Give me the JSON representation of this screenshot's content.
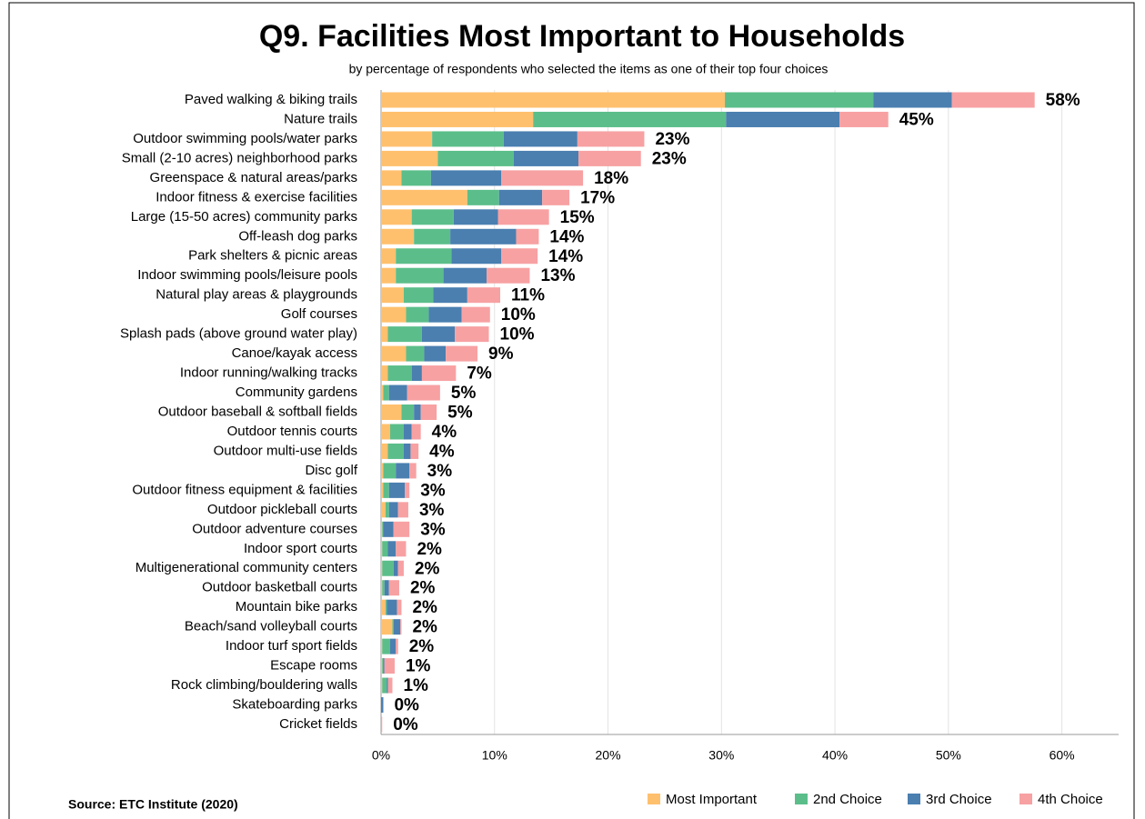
{
  "chart_data": {
    "type": "stacked-bar-horizontal",
    "title": "Q9. Facilities Most Important to Households",
    "subtitle": "by percentage of respondents who selected the items as one of their top four choices",
    "source": "Source:  ETC Institute (2020)",
    "categories": [
      "Paved walking & biking trails",
      "Nature trails",
      "Outdoor swimming pools/water parks",
      "Small (2-10 acres) neighborhood parks",
      "Greenspace & natural areas/parks",
      "Indoor fitness & exercise facilities",
      "Large (15-50 acres) community parks",
      "Off-leash dog parks",
      "Park shelters & picnic areas",
      "Indoor swimming pools/leisure pools",
      "Natural play areas & playgrounds",
      "Golf courses",
      "Splash pads (above ground water play)",
      "Canoe/kayak access",
      "Indoor running/walking tracks",
      "Community gardens",
      "Outdoor baseball & softball fields",
      "Outdoor tennis courts",
      "Outdoor multi-use fields",
      "Disc golf",
      "Outdoor fitness equipment & facilities",
      "Outdoor pickleball courts",
      "Outdoor adventure courses",
      "Indoor sport courts",
      "Multigenerational community centers",
      "Outdoor basketball courts",
      "Mountain bike parks",
      "Beach/sand volleyball courts",
      "Indoor turf sport fields",
      "Escape rooms",
      "Rock climbing/bouldering walls",
      "Skateboarding parks",
      "Cricket fields"
    ],
    "series": [
      {
        "name": "Most Important",
        "color": "#FFC06E",
        "values": [
          30.3,
          13.4,
          4.5,
          5.0,
          1.8,
          7.6,
          2.7,
          2.9,
          1.3,
          1.3,
          2.0,
          2.2,
          0.6,
          2.2,
          0.6,
          0.2,
          1.8,
          0.8,
          0.6,
          0.2,
          0.2,
          0.4,
          0.1,
          0.1,
          0.1,
          0.1,
          0.4,
          1.0,
          0.1,
          0.1,
          0.1,
          0,
          0
        ]
      },
      {
        "name": "2nd Choice",
        "color": "#5BBE8A",
        "values": [
          13.1,
          17.0,
          6.3,
          6.7,
          2.6,
          2.8,
          3.7,
          3.2,
          4.9,
          4.2,
          2.6,
          2.0,
          3.0,
          1.6,
          2.1,
          0.5,
          1.1,
          1.2,
          1.4,
          1.1,
          0.5,
          0.3,
          0.1,
          0.5,
          1.0,
          0.2,
          0.1,
          0.1,
          0.7,
          0.1,
          0.4,
          0,
          0
        ]
      },
      {
        "name": "3rd Choice",
        "color": "#4A7FB0",
        "values": [
          6.9,
          10.0,
          6.5,
          5.7,
          6.2,
          3.8,
          3.9,
          5.8,
          4.4,
          3.8,
          3.0,
          2.9,
          2.9,
          1.9,
          0.9,
          1.6,
          0.6,
          0.7,
          0.6,
          1.2,
          1.4,
          0.8,
          0.9,
          0.7,
          0.4,
          0.4,
          0.9,
          0.6,
          0.5,
          0.1,
          0.1,
          0.2,
          0
        ]
      },
      {
        "name": "4th Choice",
        "color": "#F7A1A3",
        "values": [
          7.3,
          4.3,
          5.9,
          5.5,
          7.2,
          2.4,
          4.5,
          2.0,
          3.2,
          3.8,
          2.9,
          2.5,
          3.0,
          2.8,
          3.0,
          2.9,
          1.4,
          0.8,
          0.7,
          0.6,
          0.4,
          0.9,
          1.4,
          0.9,
          0.5,
          0.9,
          0.4,
          0.1,
          0.2,
          0.9,
          0.4,
          0,
          0.1
        ]
      }
    ],
    "value_labels": [
      "58%",
      "45%",
      "23%",
      "23%",
      "18%",
      "17%",
      "15%",
      "14%",
      "14%",
      "13%",
      "11%",
      "10%",
      "10%",
      "9%",
      "7%",
      "5%",
      "5%",
      "4%",
      "4%",
      "3%",
      "3%",
      "3%",
      "3%",
      "2%",
      "2%",
      "2%",
      "2%",
      "2%",
      "2%",
      "1%",
      "1%",
      "0%",
      "0%"
    ],
    "xlim": [
      0,
      65
    ],
    "xticks": [
      {
        "value": 0,
        "label": "0%"
      },
      {
        "value": 10,
        "label": "10%"
      },
      {
        "value": 20,
        "label": "20%"
      },
      {
        "value": 30,
        "label": "30%"
      },
      {
        "value": 40,
        "label": "40%"
      },
      {
        "value": 50,
        "label": "50%"
      },
      {
        "value": 60,
        "label": "60%"
      }
    ],
    "grid": true
  }
}
